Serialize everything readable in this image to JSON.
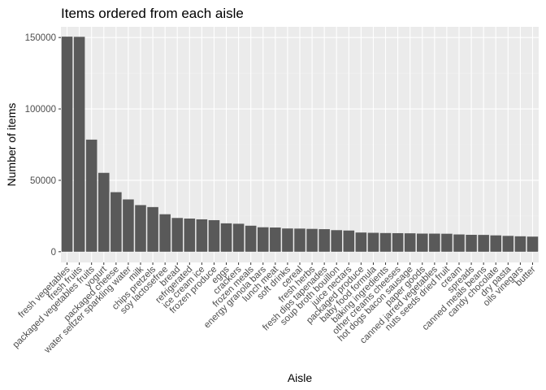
{
  "chart_data": {
    "type": "bar",
    "title": "Items ordered from each aisle",
    "xlabel": "Aisle",
    "ylabel": "Number of items",
    "ylim": [
      -7500,
      157500
    ],
    "yticks": [
      0,
      50000,
      100000,
      150000
    ],
    "ytick_labels": [
      "0",
      "50000",
      "100000",
      "150000"
    ],
    "grid": true,
    "legend": "none",
    "categories": [
      "fresh vegetables",
      "fresh fruits",
      "packaged vegetables fruits",
      "yogurt",
      "packaged cheese",
      "water seltzer sparkling water",
      "milk",
      "chips pretzels",
      "soy lactosefree",
      "bread",
      "refrigerated",
      "ice cream ice",
      "frozen produce",
      "eggs",
      "crackers",
      "frozen meals",
      "energy granola bars",
      "lunch meat",
      "soft drinks",
      "cereal",
      "fresh herbs",
      "fresh dips tapenades",
      "soup broth bouillon",
      "juice nectars",
      "packaged produce",
      "baby food formula",
      "baking ingredients",
      "other creams cheeses",
      "hot dogs bacon sausage",
      "paper goods",
      "canned jarred vegetables",
      "nuts seeds dried fruit",
      "cream",
      "spreads",
      "canned meals beans",
      "candy chocolate",
      "dry pasta",
      "oils vinegars",
      "butter"
    ],
    "values": [
      150609,
      150473,
      78493,
      55240,
      41699,
      36617,
      32644,
      31269,
      26240,
      23635,
      23228,
      22676,
      22100,
      19875,
      19592,
      18221,
      17119,
      16957,
      16279,
      16201,
      16000,
      15800,
      15100,
      14850,
      13450,
      13250,
      13088,
      13000,
      12900,
      12700,
      12679,
      12600,
      12100,
      11850,
      11774,
      11453,
      11100,
      10800,
      10575
    ],
    "colors": {
      "bar": "#595959",
      "panel": "#ebebeb",
      "grid_major": "#ffffff",
      "grid_minor": "#f2f2f2"
    }
  }
}
